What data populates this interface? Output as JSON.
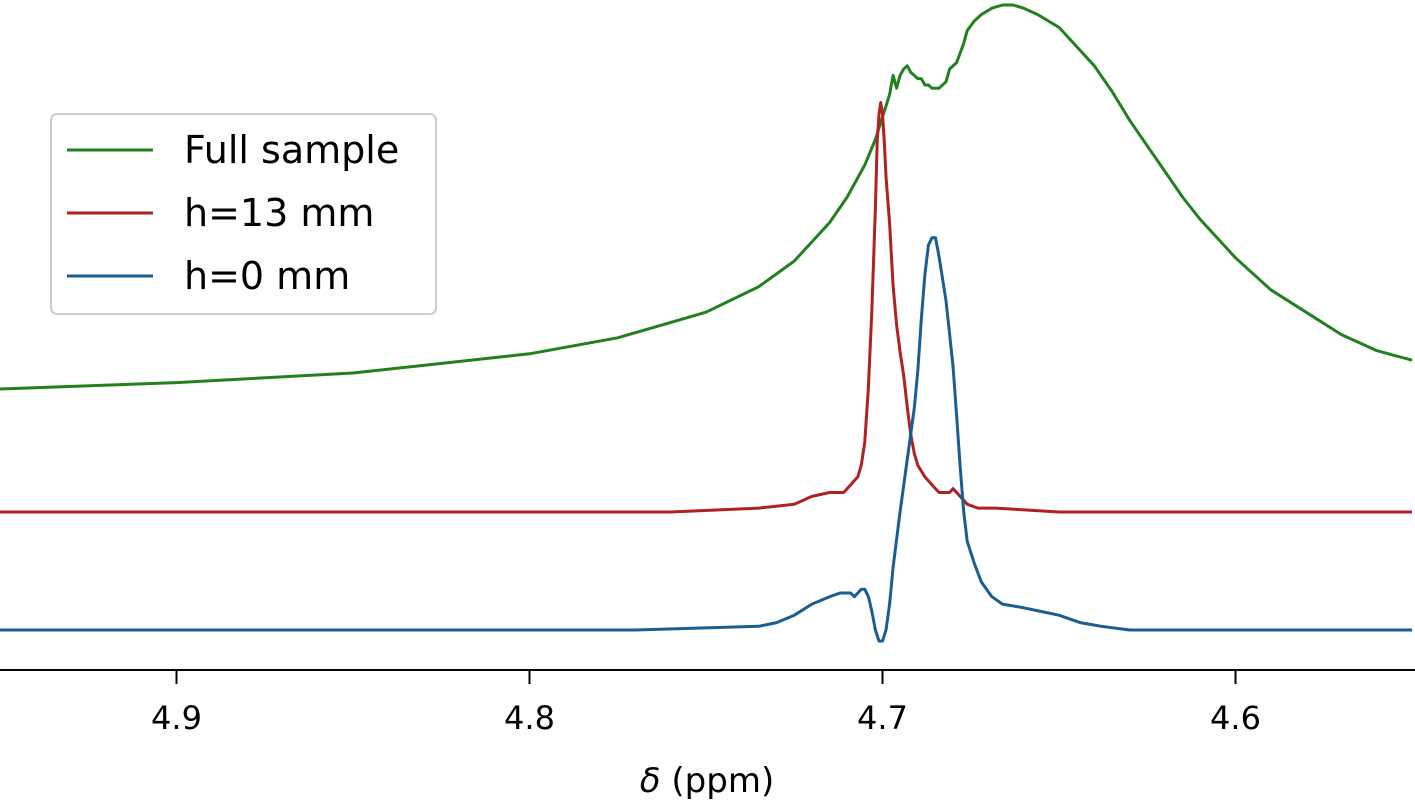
{
  "chart_data": {
    "type": "line",
    "title": "",
    "xlabel_symbol": "δ",
    "xlabel_unit": " (ppm)",
    "ylabel": "",
    "x_inverted": true,
    "xlim": [
      4.95,
      4.55
    ],
    "xticks": [
      4.9,
      4.8,
      4.7,
      4.6
    ],
    "xtick_labels": [
      "4.9",
      "4.8",
      "4.7",
      "4.6"
    ],
    "y_axis_visible": false,
    "grid": false,
    "legend_position": "upper-left",
    "legend": [
      "Full sample",
      "h=13 mm",
      "h=0 mm"
    ],
    "series": [
      {
        "name": "Full sample",
        "color": "#23801f",
        "points": [
          [
            4.95,
            0.0
          ],
          [
            4.9,
            0.02
          ],
          [
            4.85,
            0.05
          ],
          [
            4.8,
            0.11
          ],
          [
            4.775,
            0.16
          ],
          [
            4.75,
            0.24
          ],
          [
            4.735,
            0.32
          ],
          [
            4.725,
            0.4
          ],
          [
            4.715,
            0.52
          ],
          [
            4.71,
            0.6
          ],
          [
            4.705,
            0.7
          ],
          [
            4.702,
            0.78
          ],
          [
            4.7,
            0.85
          ],
          [
            4.698,
            0.92
          ],
          [
            4.697,
            0.98
          ],
          [
            4.696,
            0.94
          ],
          [
            4.695,
            0.98
          ],
          [
            4.694,
            1.0
          ],
          [
            4.693,
            1.01
          ],
          [
            4.692,
            0.99
          ],
          [
            4.69,
            0.97
          ],
          [
            4.689,
            0.97
          ],
          [
            4.688,
            0.95
          ],
          [
            4.687,
            0.95
          ],
          [
            4.686,
            0.94
          ],
          [
            4.684,
            0.94
          ],
          [
            4.683,
            0.95
          ],
          [
            4.682,
            0.96
          ],
          [
            4.681,
            1.0
          ],
          [
            4.679,
            1.02
          ],
          [
            4.678,
            1.05
          ],
          [
            4.677,
            1.08
          ],
          [
            4.676,
            1.12
          ],
          [
            4.674,
            1.15
          ],
          [
            4.672,
            1.17
          ],
          [
            4.669,
            1.19
          ],
          [
            4.666,
            1.2
          ],
          [
            4.663,
            1.2
          ],
          [
            4.66,
            1.19
          ],
          [
            4.656,
            1.17
          ],
          [
            4.65,
            1.13
          ],
          [
            4.645,
            1.07
          ],
          [
            4.64,
            1.01
          ],
          [
            4.635,
            0.93
          ],
          [
            4.63,
            0.84
          ],
          [
            4.625,
            0.76
          ],
          [
            4.62,
            0.68
          ],
          [
            4.615,
            0.6
          ],
          [
            4.61,
            0.53
          ],
          [
            4.6,
            0.41
          ],
          [
            4.59,
            0.31
          ],
          [
            4.58,
            0.24
          ],
          [
            4.57,
            0.17
          ],
          [
            4.56,
            0.12
          ],
          [
            4.55,
            0.09
          ]
        ]
      },
      {
        "name": "h=13 mm",
        "color": "#b02222",
        "points": [
          [
            4.95,
            0.0
          ],
          [
            4.85,
            0.0
          ],
          [
            4.76,
            0.0
          ],
          [
            4.735,
            0.01
          ],
          [
            4.725,
            0.02
          ],
          [
            4.72,
            0.04
          ],
          [
            4.715,
            0.05
          ],
          [
            4.711,
            0.05
          ],
          [
            4.709,
            0.07
          ],
          [
            4.707,
            0.09
          ],
          [
            4.706,
            0.12
          ],
          [
            4.705,
            0.18
          ],
          [
            4.704,
            0.32
          ],
          [
            4.703,
            0.52
          ],
          [
            4.702,
            0.78
          ],
          [
            4.7015,
            0.95
          ],
          [
            4.701,
            1.02
          ],
          [
            4.7005,
            1.05
          ],
          [
            4.7,
            1.02
          ],
          [
            4.6995,
            0.95
          ],
          [
            4.699,
            0.86
          ],
          [
            4.698,
            0.74
          ],
          [
            4.697,
            0.58
          ],
          [
            4.696,
            0.48
          ],
          [
            4.695,
            0.41
          ],
          [
            4.694,
            0.35
          ],
          [
            4.693,
            0.27
          ],
          [
            4.692,
            0.2
          ],
          [
            4.691,
            0.15
          ],
          [
            4.69,
            0.12
          ],
          [
            4.688,
            0.09
          ],
          [
            4.686,
            0.07
          ],
          [
            4.684,
            0.05
          ],
          [
            4.682,
            0.05
          ],
          [
            4.681,
            0.05
          ],
          [
            4.68,
            0.06
          ],
          [
            4.679,
            0.05
          ],
          [
            4.678,
            0.04
          ],
          [
            4.676,
            0.02
          ],
          [
            4.673,
            0.01
          ],
          [
            4.668,
            0.01
          ],
          [
            4.65,
            0.0
          ],
          [
            4.6,
            0.0
          ],
          [
            4.55,
            0.0
          ]
        ]
      },
      {
        "name": "h=0 mm",
        "color": "#1a5e91",
        "points": [
          [
            4.95,
            0.0
          ],
          [
            4.85,
            0.0
          ],
          [
            4.77,
            0.0
          ],
          [
            4.735,
            0.01
          ],
          [
            4.73,
            0.02
          ],
          [
            4.725,
            0.04
          ],
          [
            4.72,
            0.07
          ],
          [
            4.715,
            0.09
          ],
          [
            4.712,
            0.1
          ],
          [
            4.71,
            0.1
          ],
          [
            4.709,
            0.1
          ],
          [
            4.708,
            0.09
          ],
          [
            4.707,
            0.1
          ],
          [
            4.706,
            0.11
          ],
          [
            4.705,
            0.11
          ],
          [
            4.704,
            0.09
          ],
          [
            4.703,
            0.05
          ],
          [
            4.702,
            0.0
          ],
          [
            4.701,
            -0.03
          ],
          [
            4.7,
            -0.03
          ],
          [
            4.699,
            0.0
          ],
          [
            4.698,
            0.07
          ],
          [
            4.697,
            0.17
          ],
          [
            4.695,
            0.32
          ],
          [
            4.693,
            0.46
          ],
          [
            4.691,
            0.6
          ],
          [
            4.69,
            0.7
          ],
          [
            4.689,
            0.84
          ],
          [
            4.688,
            0.96
          ],
          [
            4.687,
            1.04
          ],
          [
            4.686,
            1.06
          ],
          [
            4.685,
            1.06
          ],
          [
            4.684,
            1.01
          ],
          [
            4.683,
            0.95
          ],
          [
            4.682,
            0.89
          ],
          [
            4.681,
            0.8
          ],
          [
            4.68,
            0.71
          ],
          [
            4.679,
            0.58
          ],
          [
            4.678,
            0.44
          ],
          [
            4.677,
            0.32
          ],
          [
            4.676,
            0.24
          ],
          [
            4.674,
            0.18
          ],
          [
            4.672,
            0.13
          ],
          [
            4.669,
            0.09
          ],
          [
            4.666,
            0.07
          ],
          [
            4.66,
            0.06
          ],
          [
            4.655,
            0.05
          ],
          [
            4.65,
            0.04
          ],
          [
            4.647,
            0.03
          ],
          [
            4.644,
            0.02
          ],
          [
            4.638,
            0.01
          ],
          [
            4.63,
            0.0
          ],
          [
            4.6,
            0.0
          ],
          [
            4.55,
            0.0
          ]
        ]
      }
    ]
  }
}
